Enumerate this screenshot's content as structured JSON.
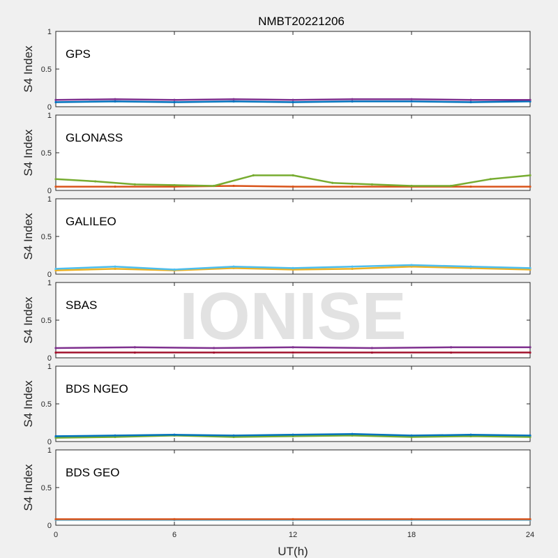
{
  "chart_data": {
    "type": "scatter",
    "title": "NMBT20221206",
    "xlabel": "UT(h)",
    "ylabel": "S4 Index",
    "xlim": [
      0,
      24
    ],
    "xticks": [
      "0",
      "6",
      "12",
      "18",
      "24"
    ],
    "ylim": [
      0,
      1
    ],
    "yticks": [
      "0",
      "0.5",
      "1"
    ],
    "watermark": "IONISE",
    "grid": false,
    "series_colors": [
      "#0072bd",
      "#d95319",
      "#edb120",
      "#7e2f8e",
      "#77ac30",
      "#4dbeee",
      "#a2142f"
    ],
    "panels": [
      {
        "label": "GPS",
        "series": [
          {
            "x": [
              0,
              3,
              6,
              9,
              12,
              15,
              18,
              21,
              24
            ],
            "y": [
              0.06,
              0.07,
              0.06,
              0.07,
              0.06,
              0.07,
              0.07,
              0.06,
              0.07
            ]
          },
          {
            "x": [
              0,
              3,
              6,
              9,
              12,
              15,
              18,
              21,
              24
            ],
            "y": [
              0.09,
              0.1,
              0.09,
              0.1,
              0.09,
              0.1,
              0.1,
              0.09,
              0.09
            ]
          }
        ]
      },
      {
        "label": "GLONASS",
        "series": [
          {
            "x": [
              0,
              3,
              6,
              9,
              12,
              15,
              18,
              21,
              24
            ],
            "y": [
              0.05,
              0.05,
              0.05,
              0.06,
              0.05,
              0.05,
              0.05,
              0.05,
              0.05
            ]
          },
          {
            "x": [
              0,
              2,
              4,
              6,
              8,
              10,
              12,
              14,
              16,
              18,
              20,
              22,
              24
            ],
            "y": [
              0.15,
              0.12,
              0.08,
              0.07,
              0.06,
              0.2,
              0.2,
              0.1,
              0.08,
              0.06,
              0.06,
              0.15,
              0.2
            ]
          }
        ]
      },
      {
        "label": "GALILEO",
        "series": [
          {
            "x": [
              0,
              3,
              6,
              9,
              12,
              15,
              18,
              21,
              24
            ],
            "y": [
              0.05,
              0.07,
              0.05,
              0.08,
              0.06,
              0.07,
              0.1,
              0.08,
              0.06
            ]
          },
          {
            "x": [
              0,
              3,
              6,
              9,
              12,
              15,
              18,
              21,
              24
            ],
            "y": [
              0.07,
              0.1,
              0.06,
              0.1,
              0.08,
              0.1,
              0.12,
              0.1,
              0.08
            ]
          }
        ]
      },
      {
        "label": "SBAS",
        "series": [
          {
            "x": [
              0,
              4,
              8,
              12,
              16,
              20,
              24
            ],
            "y": [
              0.13,
              0.14,
              0.13,
              0.14,
              0.13,
              0.14,
              0.14
            ]
          },
          {
            "x": [
              0,
              4,
              8,
              12,
              16,
              20,
              24
            ],
            "y": [
              0.07,
              0.07,
              0.07,
              0.07,
              0.07,
              0.07,
              0.07
            ]
          }
        ]
      },
      {
        "label": "BDS NGEO",
        "series": [
          {
            "x": [
              0,
              3,
              6,
              9,
              12,
              15,
              18,
              21,
              24
            ],
            "y": [
              0.05,
              0.06,
              0.08,
              0.06,
              0.07,
              0.08,
              0.06,
              0.07,
              0.06
            ]
          },
          {
            "x": [
              0,
              3,
              6,
              9,
              12,
              15,
              18,
              21,
              24
            ],
            "y": [
              0.07,
              0.08,
              0.09,
              0.08,
              0.09,
              0.1,
              0.08,
              0.09,
              0.08
            ]
          }
        ]
      },
      {
        "label": "BDS GEO",
        "series": [
          {
            "x": [
              0,
              6,
              12,
              18,
              24
            ],
            "y": [
              0.07,
              0.07,
              0.07,
              0.07,
              0.07
            ]
          },
          {
            "x": [
              0,
              6,
              12,
              18,
              24
            ],
            "y": [
              0.08,
              0.08,
              0.08,
              0.08,
              0.08
            ]
          }
        ]
      }
    ]
  }
}
